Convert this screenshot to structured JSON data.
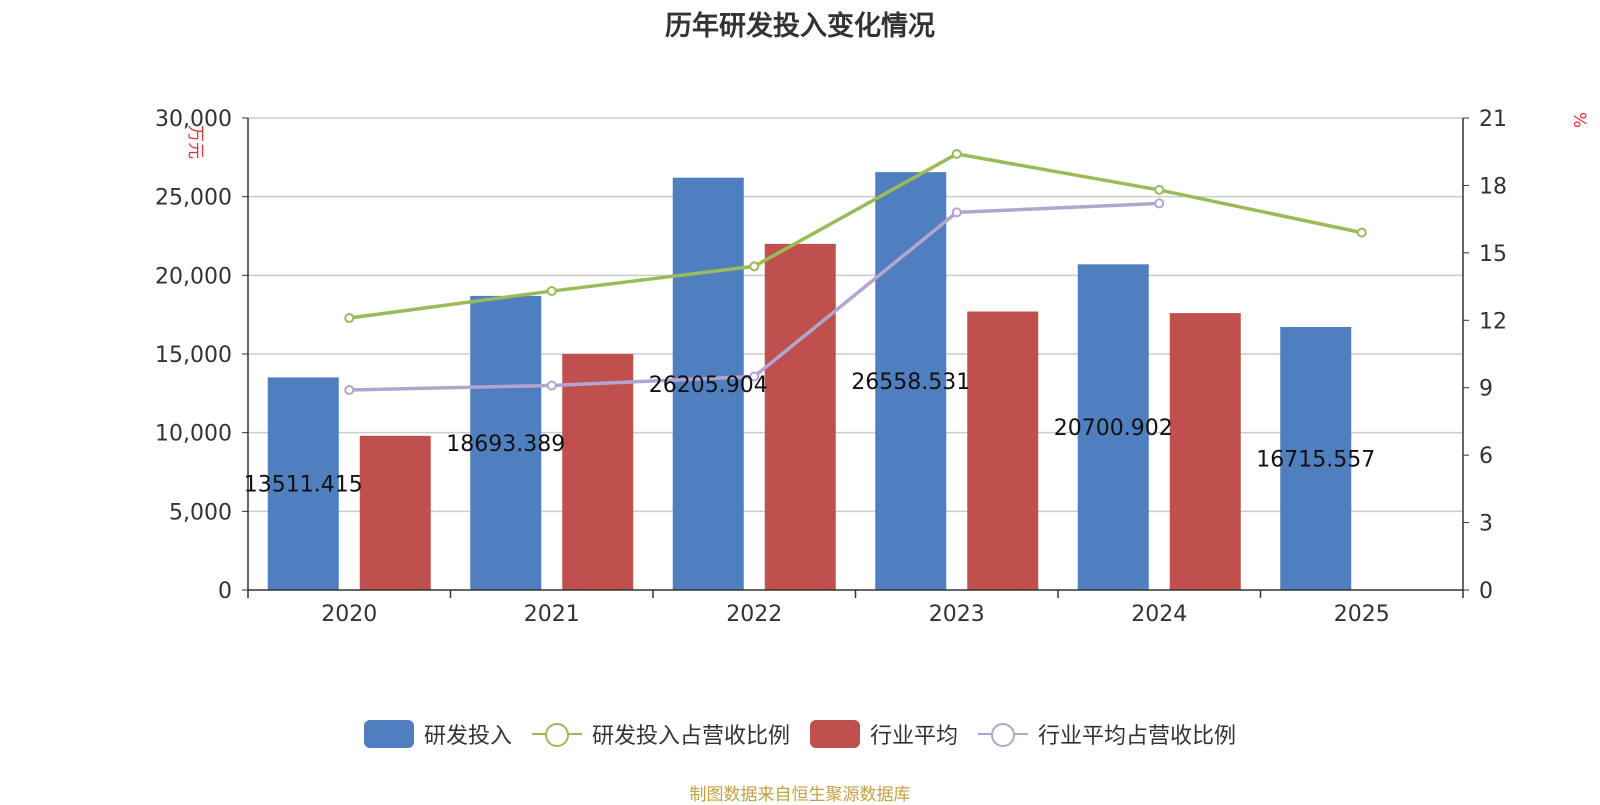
{
  "title": "历年研发投入变化情况",
  "source": "制图数据来自恒生聚源数据库",
  "chart_data": {
    "type": "bar",
    "categories": [
      "2020",
      "2021",
      "2022",
      "2023",
      "2024",
      "2025"
    ],
    "y_left": {
      "unit": "万元",
      "ylim": [
        0,
        30000
      ],
      "ticks": [
        0,
        5000,
        10000,
        15000,
        20000,
        25000,
        30000
      ],
      "tick_labels": [
        "0",
        "5,000",
        "10,000",
        "15,000",
        "20,000",
        "25,000",
        "30,000"
      ]
    },
    "y_right": {
      "unit": "%",
      "ylim": [
        0,
        21
      ],
      "ticks": [
        0,
        3,
        6,
        9,
        12,
        15,
        18,
        21
      ],
      "tick_labels": [
        "0",
        "3",
        "6",
        "9",
        "12",
        "15",
        "18",
        "21"
      ]
    },
    "grid": true,
    "legend_position": "bottom",
    "series": [
      {
        "name": "研发投入",
        "type": "bar",
        "axis": "left",
        "color": "#4f7fbf",
        "values": [
          13511.415,
          18693.389,
          26205.904,
          26558.531,
          20700.902,
          16715.557
        ],
        "labels": [
          "13511.415",
          "18693.389",
          "26205.904",
          "26558.531",
          "20700.902",
          "16715.557"
        ]
      },
      {
        "name": "研发投入占营收比例",
        "type": "line",
        "axis": "right",
        "color": "#9bbb59",
        "values": [
          12.1,
          13.3,
          14.4,
          19.4,
          17.8,
          15.9
        ]
      },
      {
        "name": "行业平均",
        "type": "bar",
        "axis": "left",
        "color": "#c0504d",
        "values": [
          9800,
          15000,
          22000,
          17700,
          17600,
          null
        ]
      },
      {
        "name": "行业平均占营收比例",
        "type": "line",
        "axis": "right",
        "color": "#b3a5d0",
        "values": [
          8.9,
          9.1,
          9.5,
          16.8,
          17.2,
          null
        ]
      }
    ]
  }
}
